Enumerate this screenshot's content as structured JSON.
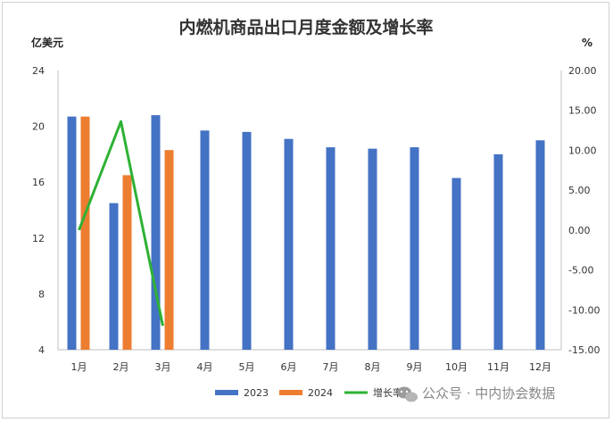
{
  "chart_data": {
    "type": "bar",
    "title": "内燃机商品出口月度金额及增长率",
    "y_left_unit": "亿美元",
    "y_right_unit": "%",
    "categories": [
      "1月",
      "2月",
      "3月",
      "4月",
      "5月",
      "6月",
      "7月",
      "8月",
      "9月",
      "10月",
      "11月",
      "12月"
    ],
    "y_left_ticks": [
      "4",
      "8",
      "12",
      "16",
      "20",
      "24"
    ],
    "y_right_ticks": [
      "-15.00",
      "-10.00",
      "-5.00",
      "0.00",
      "5.00",
      "10.00",
      "15.00",
      "20.00"
    ],
    "ylim_left": [
      4,
      24
    ],
    "ylim_right": [
      -15,
      20
    ],
    "grid": false,
    "legend_position": "bottom",
    "series": [
      {
        "name": "2023",
        "kind": "bar",
        "axis": "left",
        "color": "#4472c4",
        "values": [
          20.7,
          14.5,
          20.8,
          19.7,
          19.6,
          19.1,
          18.5,
          18.4,
          18.5,
          16.3,
          18.0,
          19.0
        ]
      },
      {
        "name": "2024",
        "kind": "bar",
        "axis": "left",
        "color": "#ed7d31",
        "values": [
          20.7,
          16.5,
          18.3,
          null,
          null,
          null,
          null,
          null,
          null,
          null,
          null,
          null
        ]
      },
      {
        "name": "增长率",
        "kind": "line",
        "axis": "right",
        "color": "#2eb135",
        "values": [
          0.0,
          13.6,
          -12.0,
          null,
          null,
          null,
          null,
          null,
          null,
          null,
          null,
          null
        ]
      }
    ]
  },
  "watermark": {
    "text": "公众号 · 中内协会数据",
    "icon": "wechat-icon"
  }
}
